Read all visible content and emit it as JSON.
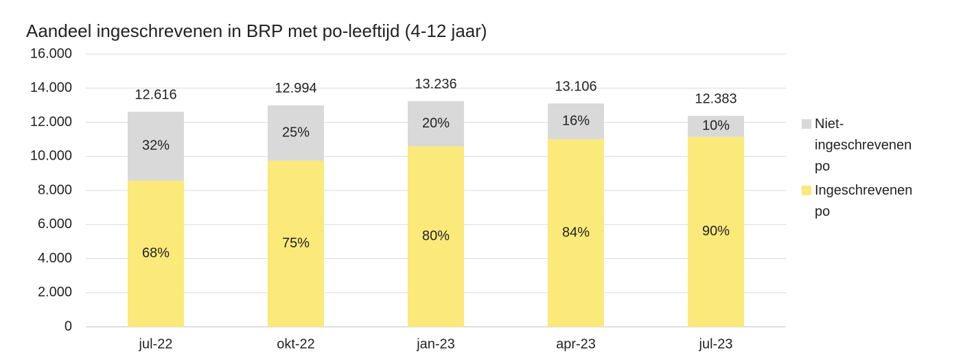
{
  "chart_data": {
    "type": "stacked_bar",
    "title": "Aandeel ingeschrevenen in BRP met po-leeftijd (4-12 jaar)",
    "categories": [
      "jul-22",
      "okt-22",
      "jan-23",
      "apr-23",
      "jul-23"
    ],
    "series": [
      {
        "name": "Ingeschrevenen po",
        "color": "#fbe97a",
        "values": [
          8579,
          9746,
          10589,
          11009,
          11145
        ],
        "percent_labels": [
          "68%",
          "75%",
          "80%",
          "84%",
          "90%"
        ]
      },
      {
        "name": "Niet-ingeschrevenen po",
        "color": "#d9d9d9",
        "values": [
          4037,
          3248,
          2647,
          2097,
          1238
        ],
        "percent_labels": [
          "32%",
          "25%",
          "20%",
          "16%",
          "10%"
        ]
      }
    ],
    "totals": [
      {
        "value": 12616,
        "label": "12.616"
      },
      {
        "value": 12994,
        "label": "12.994"
      },
      {
        "value": 13236,
        "label": "13.236"
      },
      {
        "value": 13106,
        "label": "13.106"
      },
      {
        "value": 12383,
        "label": "12.383"
      }
    ],
    "ylim": [
      0,
      16000
    ],
    "yticks": [
      0,
      {
        "value": 2000,
        "label": "2.000"
      },
      {
        "value": 4000,
        "label": "4.000"
      },
      {
        "value": 6000,
        "label": "6.000"
      },
      {
        "value": 8000,
        "label": "8.000"
      },
      {
        "value": 10000,
        "label": "10.000"
      },
      {
        "value": 12000,
        "label": "12.000"
      },
      {
        "value": 14000,
        "label": "14.000"
      },
      {
        "value": 16000,
        "label": "16.000"
      }
    ],
    "grid": true,
    "legend": "right"
  }
}
